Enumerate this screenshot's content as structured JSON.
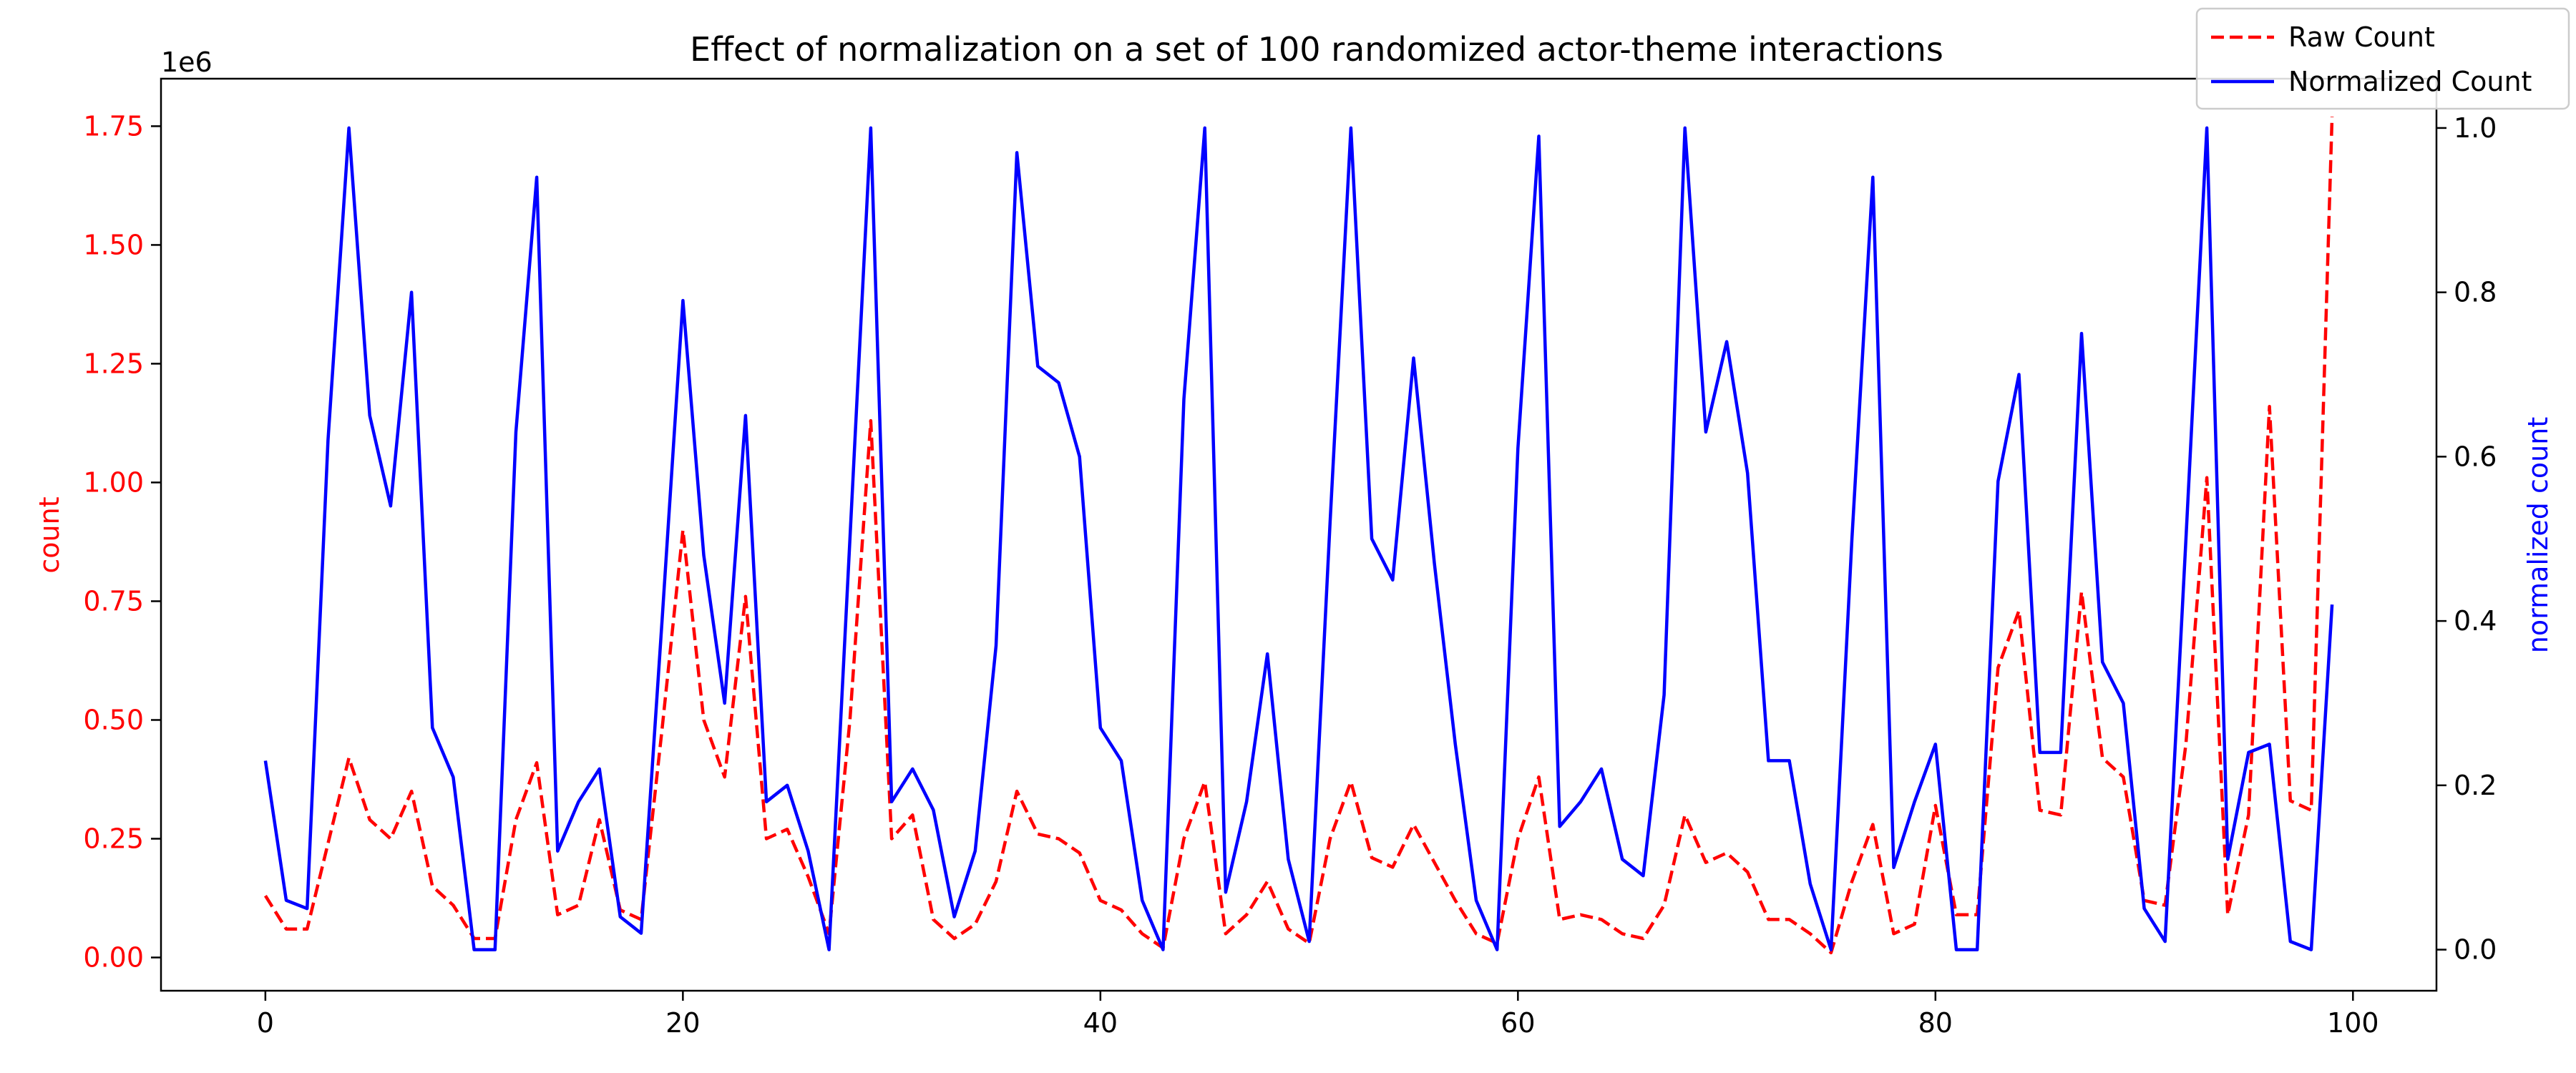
{
  "chart_data": {
    "type": "line",
    "title": "Effect of normalization on a set of 100 randomized actor-theme interactions",
    "xlabel": "",
    "ylabel_left": "count",
    "ylabel_right": "normalized count",
    "left_offset_label": "1e6",
    "xlim": [
      -5,
      104
    ],
    "ylim_left": [
      -70000,
      1850000
    ],
    "ylim_right": [
      -0.05,
      1.06
    ],
    "x_ticks": [
      0,
      20,
      40,
      60,
      80,
      100
    ],
    "y_ticks_left": [
      0.0,
      0.25,
      0.5,
      0.75,
      1.0,
      1.25,
      1.5,
      1.75
    ],
    "y_ticks_left_labels": [
      "0.00",
      "0.25",
      "0.50",
      "0.75",
      "1.00",
      "1.25",
      "1.50",
      "1.75"
    ],
    "y_ticks_right": [
      0.0,
      0.2,
      0.4,
      0.6,
      0.8,
      1.0
    ],
    "y_ticks_right_labels": [
      "0.0",
      "0.2",
      "0.4",
      "0.6",
      "0.8",
      "1.0"
    ],
    "grid": false,
    "legend_position": "top-right",
    "colors": {
      "raw": "#ff0000",
      "normalized": "#0000ff",
      "axis": "#000000"
    },
    "series": [
      {
        "name": "Raw Count",
        "axis": "left",
        "style": "dashed",
        "color": "#ff0000",
        "x": [
          0,
          1,
          2,
          3,
          4,
          5,
          6,
          7,
          8,
          9,
          10,
          11,
          12,
          13,
          14,
          15,
          16,
          17,
          18,
          19,
          20,
          21,
          22,
          23,
          24,
          25,
          26,
          27,
          28,
          29,
          30,
          31,
          32,
          33,
          34,
          35,
          36,
          37,
          38,
          39,
          40,
          41,
          42,
          43,
          44,
          45,
          46,
          47,
          48,
          49,
          50,
          51,
          52,
          53,
          54,
          55,
          56,
          57,
          58,
          59,
          60,
          61,
          62,
          63,
          64,
          65,
          66,
          67,
          68,
          69,
          70,
          71,
          72,
          73,
          74,
          75,
          76,
          77,
          78,
          79,
          80,
          81,
          82,
          83,
          84,
          85,
          86,
          87,
          88,
          89,
          90,
          91,
          92,
          93,
          94,
          95,
          96,
          97,
          98,
          99
        ],
        "values": [
          130000,
          60000,
          60000,
          240000,
          420000,
          290000,
          250000,
          350000,
          150000,
          110000,
          40000,
          40000,
          290000,
          410000,
          90000,
          110000,
          290000,
          100000,
          80000,
          480000,
          900000,
          500000,
          380000,
          760000,
          250000,
          270000,
          170000,
          50000,
          500000,
          1130000,
          250000,
          300000,
          80000,
          40000,
          70000,
          160000,
          350000,
          260000,
          250000,
          220000,
          120000,
          100000,
          50000,
          20000,
          250000,
          370000,
          50000,
          90000,
          160000,
          60000,
          30000,
          250000,
          370000,
          210000,
          190000,
          280000,
          200000,
          120000,
          50000,
          30000,
          250000,
          380000,
          80000,
          90000,
          80000,
          50000,
          40000,
          110000,
          300000,
          200000,
          220000,
          180000,
          80000,
          80000,
          50000,
          10000,
          160000,
          280000,
          50000,
          70000,
          320000,
          90000,
          90000,
          610000,
          730000,
          310000,
          300000,
          770000,
          420000,
          380000,
          120000,
          110000,
          450000,
          1010000,
          90000,
          300000,
          1160000,
          330000,
          310000,
          1770000
        ]
      },
      {
        "name": "Normalized Count",
        "axis": "right",
        "style": "solid",
        "color": "#0000ff",
        "x": [
          0,
          1,
          2,
          3,
          4,
          5,
          6,
          7,
          8,
          9,
          10,
          11,
          12,
          13,
          14,
          15,
          16,
          17,
          18,
          19,
          20,
          21,
          22,
          23,
          24,
          25,
          26,
          27,
          28,
          29,
          30,
          31,
          32,
          33,
          34,
          35,
          36,
          37,
          38,
          39,
          40,
          41,
          42,
          43,
          44,
          45,
          46,
          47,
          48,
          49,
          50,
          51,
          52,
          53,
          54,
          55,
          56,
          57,
          58,
          59,
          60,
          61,
          62,
          63,
          64,
          65,
          66,
          67,
          68,
          69,
          70,
          71,
          72,
          73,
          74,
          75,
          76,
          77,
          78,
          79,
          80,
          81,
          82,
          83,
          84,
          85,
          86,
          87,
          88,
          89,
          90,
          91,
          92,
          93,
          94,
          95,
          96,
          97,
          98,
          99
        ],
        "values": [
          0.23,
          0.06,
          0.05,
          0.62,
          1.0,
          0.65,
          0.54,
          0.8,
          0.27,
          0.21,
          0.0,
          0.0,
          0.63,
          0.94,
          0.12,
          0.18,
          0.22,
          0.04,
          0.02,
          0.4,
          0.79,
          0.48,
          0.3,
          0.65,
          0.18,
          0.2,
          0.12,
          0.0,
          0.5,
          1.0,
          0.18,
          0.22,
          0.17,
          0.04,
          0.12,
          0.37,
          0.97,
          0.71,
          0.69,
          0.6,
          0.27,
          0.23,
          0.06,
          0.0,
          0.67,
          1.0,
          0.07,
          0.18,
          0.36,
          0.11,
          0.01,
          0.52,
          1.0,
          0.5,
          0.45,
          0.72,
          0.47,
          0.25,
          0.06,
          0.0,
          0.61,
          0.99,
          0.15,
          0.18,
          0.22,
          0.11,
          0.09,
          0.31,
          1.0,
          0.63,
          0.74,
          0.58,
          0.23,
          0.23,
          0.08,
          0.0,
          0.5,
          0.94,
          0.1,
          0.18,
          0.25,
          0.0,
          0.0,
          0.57,
          0.7,
          0.24,
          0.24,
          0.75,
          0.35,
          0.3,
          0.05,
          0.01,
          0.5,
          1.0,
          0.11,
          0.24,
          0.25,
          0.01,
          0.0,
          0.42
        ]
      }
    ]
  }
}
